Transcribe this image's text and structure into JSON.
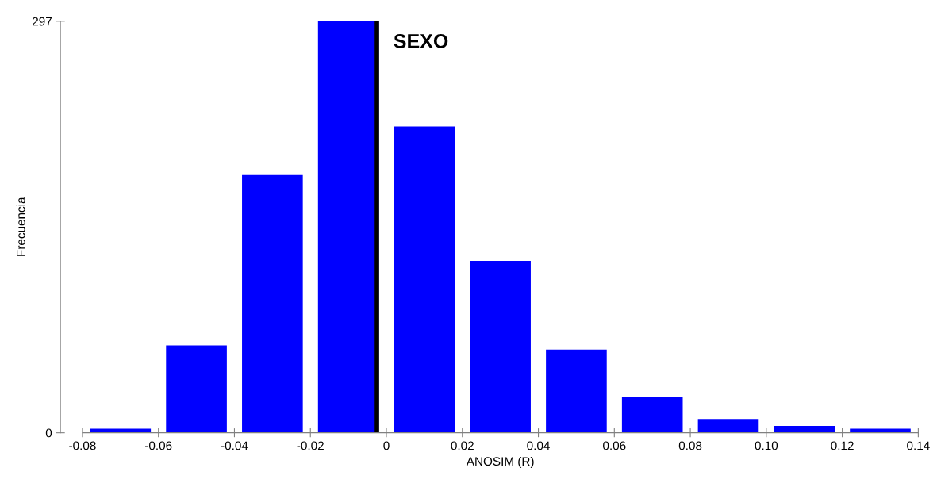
{
  "chart_data": {
    "type": "histogram",
    "xlabel": "ANOSIM (R)",
    "ylabel": "Frecuencia",
    "bins": [
      -0.08,
      -0.06,
      -0.04,
      -0.02,
      0,
      0.02,
      0.04,
      0.06,
      0.08,
      0.1,
      0.12,
      0.14
    ],
    "values": [
      3,
      63,
      186,
      297,
      221,
      124,
      60,
      26,
      10,
      5,
      3
    ],
    "color": "#0000ff",
    "xlim": [
      -0.08,
      0.14
    ],
    "xticks": [
      -0.08,
      -0.06,
      -0.04,
      -0.02,
      0,
      0.02,
      0.04,
      0.06,
      {
        "value": 0.08,
        "label": "0.08"
      },
      {
        "value": 0.1,
        "label": "0.10"
      },
      {
        "value": 0.12,
        "label": "0.12"
      },
      {
        "value": 0.14,
        "label": "0.14"
      }
    ],
    "ylim": [
      0,
      297
    ],
    "yticks": [
      0,
      297
    ],
    "ref_lines": [
      {
        "axis": "x",
        "value": -0.0025,
        "label": "SEXO",
        "color": "#000000"
      }
    ],
    "grid": false,
    "legend": false
  }
}
